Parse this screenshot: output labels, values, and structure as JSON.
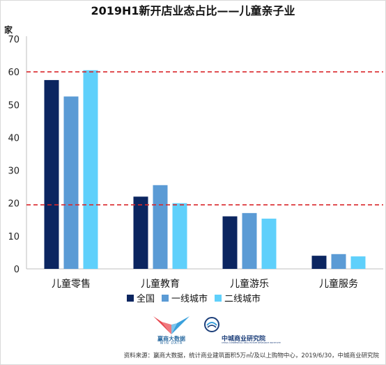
{
  "chart_data": {
    "type": "bar",
    "title": "2019H1新开店业态占比——儿童亲子业",
    "ylabel": "家",
    "ylim": [
      0,
      70
    ],
    "yticks": [
      0,
      10,
      20,
      30,
      40,
      50,
      60,
      70
    ],
    "categories": [
      "儿童零售",
      "儿童教育",
      "儿童游乐",
      "儿童服务"
    ],
    "series": [
      {
        "name": "全国",
        "color": "#0b2560",
        "values": [
          57.5,
          22,
          16,
          4
        ]
      },
      {
        "name": "一线城市",
        "color": "#5b9bd5",
        "values": [
          52.5,
          25.5,
          17,
          4.5
        ]
      },
      {
        "name": "二线城市",
        "color": "#5fd0fb",
        "values": [
          60.5,
          20,
          15.3,
          3.8
        ]
      }
    ],
    "reference_lines": [
      60,
      19.5
    ],
    "reference_color": "#d9262a",
    "grid": false,
    "legend_position": "bottom"
  },
  "footer": {
    "logo_win": "赢商大数据",
    "logo_win_sub": "WIN DATA",
    "logo_zc": "中城商业研究院",
    "logo_zc_sub": "CHINA COMMERCIAL REAL ESTATE RESEARCH INSTITUTE",
    "source": "资料来源：赢商大数据，统计商业建筑面积5万㎡/及以上购物中心，2019/6/30，中城商业研究院"
  }
}
